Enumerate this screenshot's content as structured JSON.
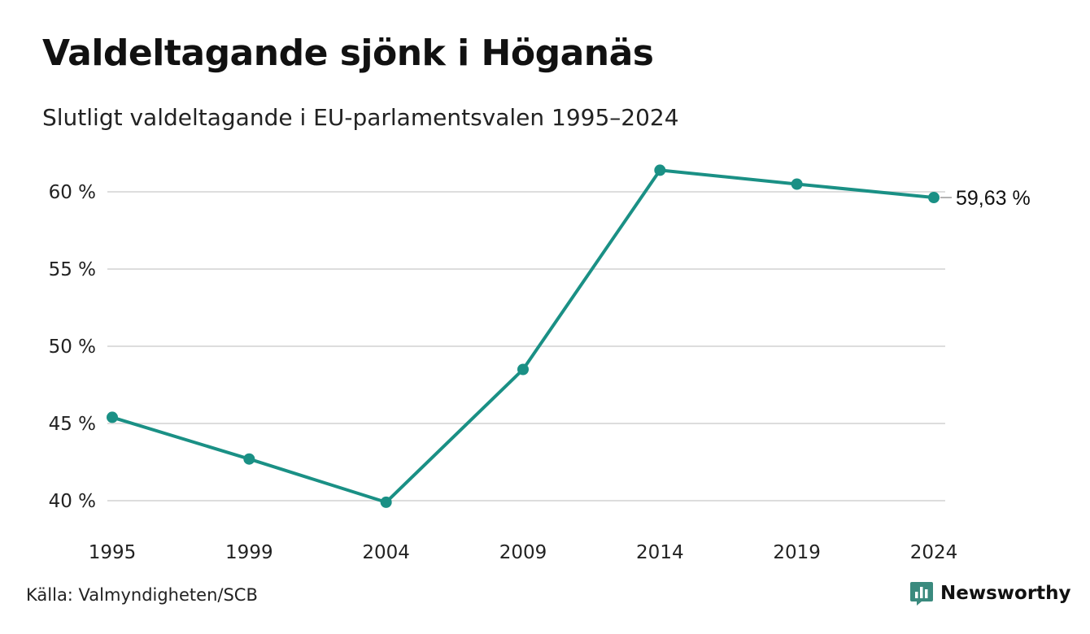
{
  "title": "Valdeltagande sjönk i Höganäs",
  "subtitle": "Slutligt valdeltagande i EU-parlamentsvalen 1995–2024",
  "source": "Källa: Valmyndigheten/SCB",
  "brand": {
    "name": "Newsworthy",
    "icon": "newsworthy-logo-icon",
    "color": "#3a8a7e"
  },
  "colors": {
    "series": "#1a9085",
    "grid": "#dddddd"
  },
  "chart_data": {
    "type": "line",
    "title": "Valdeltagande sjönk i Höganäs",
    "subtitle": "Slutligt valdeltagande i EU-parlamentsvalen 1995–2024",
    "xlabel": "",
    "ylabel": "",
    "x": [
      1995,
      1999,
      2004,
      2009,
      2014,
      2019,
      2024
    ],
    "x_tick_labels": [
      "1995",
      "1999",
      "2004",
      "2009",
      "2014",
      "2019",
      "2024"
    ],
    "series": [
      {
        "values": [
          45.4,
          42.7,
          39.9,
          48.5,
          61.4,
          60.5,
          59.63
        ]
      }
    ],
    "ylim": [
      40,
      61.5
    ],
    "y_ticks": [
      40,
      45,
      50,
      55,
      60
    ],
    "y_tick_labels": [
      "40 %",
      "45 %",
      "50 %",
      "55 %",
      "60 %"
    ],
    "end_label": "59,63 %",
    "grid": "horizontal",
    "legend": "none"
  }
}
